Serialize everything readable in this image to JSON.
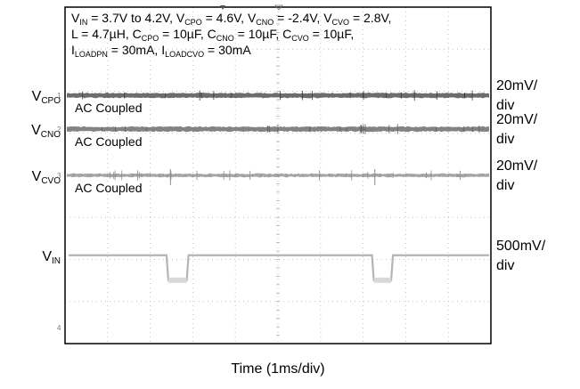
{
  "chart_data": {
    "type": "line",
    "title": "",
    "xlabel": "Time (1ms/div)",
    "ylabel": "",
    "grid": true,
    "grid_divisions": {
      "x": 10,
      "y": 8
    },
    "annotation_lines": [
      [
        {
          "t": "V"
        },
        {
          "s": "IN"
        },
        {
          "t": " = 3.7V to 4.2V, V"
        },
        {
          "s": "CPO"
        },
        {
          "t": " = 4.6V, V"
        },
        {
          "s": "CNO"
        },
        {
          "t": " = -2.4V, V"
        },
        {
          "s": "CVO"
        },
        {
          "t": " = 2.8V,"
        }
      ],
      [
        {
          "t": "L = 4.7µH, C"
        },
        {
          "s": "CPO"
        },
        {
          "t": " = 10µF, C"
        },
        {
          "s": "CNO"
        },
        {
          "t": " = 10µF, C"
        },
        {
          "s": "CVO"
        },
        {
          "t": " = 10µF,"
        }
      ],
      [
        {
          "t": "I"
        },
        {
          "s": "LOADPN"
        },
        {
          "t": " = 30mA, I"
        },
        {
          "s": "LOADCVO"
        },
        {
          "t": " = 30mA"
        }
      ]
    ],
    "channels": [
      {
        "id": "cpo",
        "name_main": "V",
        "name_sub": "CPO",
        "marker": "1",
        "scale": "20mV/\ndiv",
        "coupling_note": "AC Coupled",
        "color": "#3c3c3c",
        "level_div": 2.1
      },
      {
        "id": "cno",
        "name_main": "V",
        "name_sub": "CNO",
        "marker": "2",
        "scale": "20mV/\ndiv",
        "coupling_note": "AC Coupled",
        "color": "#5a5a5a",
        "level_div": 2.9
      },
      {
        "id": "cvo",
        "name_main": "V",
        "name_sub": "CVO",
        "marker": "3",
        "scale": "20mV/\ndiv",
        "coupling_note": "AC Coupled",
        "color": "#8a8a8a",
        "level_div": 4.0
      },
      {
        "id": "vin",
        "name_main": "V",
        "name_sub": "IN",
        "marker": "",
        "scale": "500mV/\ndiv",
        "coupling_note": "",
        "color": "#b4b4b4",
        "level_div": 5.9
      }
    ],
    "vin_steps": [
      {
        "start_div": 4.85,
        "end_div": 5.8,
        "drop_mV": 500
      },
      {
        "start_div": 14.5,
        "end_div": 15.4,
        "drop_mV": 500
      }
    ],
    "bottom_marker": "4"
  }
}
